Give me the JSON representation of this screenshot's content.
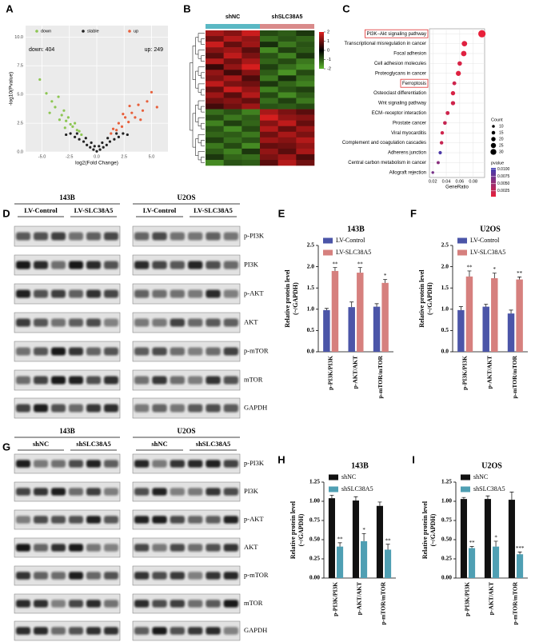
{
  "chart_data": [
    {
      "type": "scatter",
      "panel": "A",
      "xlabel": "log2(Fold Change)",
      "ylabel": "-log10(Pvalue)",
      "annotations": [
        "down: 404",
        "up: 249"
      ],
      "legend": "top",
      "grid": true,
      "xlim": [
        -6.5,
        6.5
      ],
      "ylim": [
        0,
        11
      ],
      "xticks": [
        {
          "value": -5,
          "label": "-5.0"
        },
        {
          "value": -2.5,
          "label": "-2.5"
        },
        {
          "value": 0,
          "label": "0.0"
        },
        {
          "value": 2.5,
          "label": "2.5"
        },
        {
          "value": 5,
          "label": "5.0"
        }
      ],
      "yticks": [
        {
          "value": 0,
          "label": "0.0"
        },
        {
          "value": 2.5,
          "label": "2.5"
        },
        {
          "value": 5,
          "label": "5.0"
        },
        {
          "value": 7.5,
          "label": "7.5"
        },
        {
          "value": 10,
          "label": "10.0"
        }
      ],
      "series": [
        {
          "name": "down",
          "color": "#8dc653",
          "x": [
            -5.2,
            -4.6,
            -4.1,
            -3.8,
            -3.5,
            -3.2,
            -3.0,
            -2.8,
            -2.6,
            -2.4,
            -2.2,
            -2.0,
            -1.8,
            -1.6,
            -1.4,
            -3.4,
            -2.9,
            -4.3
          ],
          "values": [
            6.3,
            5.1,
            4.4,
            3.9,
            4.8,
            3.2,
            3.6,
            2.7,
            3.0,
            2.4,
            2.2,
            2.5,
            1.9,
            1.8,
            1.5,
            2.8,
            2.1,
            3.4
          ]
        },
        {
          "name": "stable",
          "color": "#222222",
          "x": [
            -2.4,
            -2.0,
            -1.6,
            -1.2,
            -0.9,
            -0.6,
            -0.3,
            0,
            0.3,
            0.6,
            0.9,
            1.2,
            1.6,
            2.0,
            2.4,
            -1.0,
            -0.5,
            0.5,
            1.0,
            -1.8,
            1.8,
            -2.8,
            2.8,
            -0.2,
            0.2
          ],
          "values": [
            1.6,
            1.3,
            1.1,
            0.9,
            0.6,
            0.4,
            0.2,
            0.05,
            0.2,
            0.4,
            0.6,
            0.9,
            1.1,
            1.3,
            1.6,
            1.2,
            0.8,
            0.8,
            1.2,
            1.6,
            1.6,
            1.5,
            1.5,
            0.5,
            0.5
          ]
        },
        {
          "name": "up",
          "color": "#e8603c",
          "x": [
            1.3,
            1.5,
            1.8,
            2.0,
            2.3,
            2.6,
            2.9,
            3.2,
            3.5,
            3.8,
            4.2,
            4.6,
            5.0,
            3.0,
            2.4,
            4.0,
            5.5
          ],
          "values": [
            1.6,
            2.0,
            1.9,
            2.5,
            2.2,
            3.0,
            2.6,
            3.4,
            3.0,
            4.1,
            3.6,
            4.4,
            5.2,
            4.0,
            3.3,
            2.8,
            3.9
          ]
        }
      ]
    },
    {
      "type": "heatmap",
      "panel": "B",
      "groups": [
        {
          "name": "shNC",
          "color": "#5ab8c4",
          "columns": 3
        },
        {
          "name": "shSLC38A5",
          "color": "#d98a8a",
          "columns": 3
        }
      ],
      "colors": [
        "#5cb82e",
        "#000000",
        "#e02020"
      ],
      "zlim": [
        -2,
        2
      ],
      "zticks": [
        2,
        1,
        0,
        -1,
        -2
      ],
      "values": [
        [
          1.5,
          1.2,
          1.8,
          -0.8,
          -1.0,
          -0.6
        ],
        [
          1.0,
          1.6,
          1.3,
          -1.2,
          -0.9,
          -1.1
        ],
        [
          1.8,
          0.9,
          1.4,
          -0.5,
          -1.3,
          -0.9
        ],
        [
          1.2,
          1.4,
          0.8,
          -1.5,
          -0.7,
          -1.0
        ],
        [
          0.8,
          1.7,
          1.1,
          -0.9,
          -1.4,
          -0.6
        ],
        [
          1.6,
          1.0,
          1.5,
          -1.1,
          -0.8,
          -1.3
        ],
        [
          0.5,
          1.3,
          1.9,
          -0.7,
          -1.2,
          -1.5
        ],
        [
          1.3,
          0.6,
          1.2,
          -1.0,
          -1.6,
          -0.8
        ],
        [
          1.1,
          1.5,
          0.7,
          -1.3,
          -0.5,
          -1.2
        ],
        [
          1.7,
          1.1,
          1.0,
          -0.6,
          -1.1,
          -1.4
        ],
        [
          0.9,
          1.8,
          1.3,
          -1.4,
          -0.9,
          -0.7
        ],
        [
          1.4,
          0.8,
          1.6,
          -0.8,
          -1.5,
          -1.0
        ],
        [
          1.0,
          1.2,
          0.9,
          -1.2,
          -0.7,
          -1.3
        ],
        [
          0.6,
          1.0,
          1.4,
          -0.9,
          -1.0,
          -0.8
        ],
        [
          -1.2,
          -0.9,
          -1.4,
          1.5,
          1.1,
          0.8
        ],
        [
          -0.8,
          -1.3,
          -1.0,
          1.9,
          1.3,
          1.2
        ],
        [
          -1.4,
          -0.7,
          -1.1,
          1.2,
          1.7,
          0.9
        ],
        [
          -0.9,
          -1.5,
          -0.8,
          1.6,
          0.9,
          1.4
        ],
        [
          -1.1,
          -1.0,
          -1.3,
          1.0,
          1.5,
          1.1
        ],
        [
          -0.7,
          -1.2,
          -0.9,
          1.4,
          1.2,
          1.6
        ],
        [
          -1.3,
          -0.8,
          -1.5,
          0.9,
          1.0,
          1.3
        ],
        [
          -1.0,
          -1.4,
          -0.6,
          1.3,
          0.8,
          1.5
        ],
        [
          -0.6,
          -1.1,
          -1.2,
          1.1,
          1.4,
          0.7
        ],
        [
          -1.5,
          -0.9,
          -1.0,
          0.8,
          1.6,
          1.0
        ]
      ]
    },
    {
      "type": "dot",
      "panel": "C",
      "xlabel": "GeneRatio",
      "size_title": "Count",
      "color_title": "pvalue",
      "boxed": [
        0,
        5
      ],
      "grid": true,
      "categories": [
        "PI3K−Akt signaling pathway",
        "Transcriptional misregulation in cancer",
        "Focal adhesion",
        "Cell adhesion molecules",
        "Proteoglycans in cancer",
        "Ferroptosis",
        "Osteoclast differentiation",
        "Wnt signaling pathway",
        "ECM−receptor interaction",
        "Prostate cancer",
        "Viral myocarditis",
        "Complement and coagulation cascades",
        "Adherens junction",
        "Central carbon metabolism in cancer",
        "Allograft rejection"
      ],
      "values": [
        0.093,
        0.067,
        0.066,
        0.06,
        0.058,
        0.052,
        0.05,
        0.05,
        0.042,
        0.038,
        0.034,
        0.033,
        0.031,
        0.028,
        0.02
      ],
      "sizes": [
        30,
        20,
        20,
        15,
        18,
        12,
        14,
        14,
        12,
        11,
        10,
        10,
        9,
        8,
        6
      ],
      "pvalues": [
        0.0005,
        0.001,
        0.001,
        0.0015,
        0.001,
        0.002,
        0.0015,
        0.002,
        0.002,
        0.0025,
        0.002,
        0.0025,
        0.0095,
        0.006,
        0.007
      ],
      "xlim": [
        0.015,
        0.097
      ],
      "xticks": [
        0.02,
        0.04,
        0.06,
        0.08
      ],
      "size_ticks": [
        10,
        15,
        20,
        25,
        30
      ],
      "colors": [
        "#e8203a",
        "#3b3bb3"
      ],
      "plim": [
        0.0005,
        0.0105
      ],
      "pticks": [
        {
          "value": 0.01,
          "label": "0.0100"
        },
        {
          "value": 0.0075,
          "label": "0.0075"
        },
        {
          "value": 0.005,
          "label": "0.0050"
        },
        {
          "value": 0.0025,
          "label": "0.0025"
        }
      ]
    },
    {
      "type": "bar",
      "panel": "E",
      "title": "143B",
      "ylabel": [
        "Relative protein level",
        "(~/GAPDH)"
      ],
      "categories": [
        "p-PI3K/PI3K",
        "p-AKT/AKT",
        "p-mTOR/mTOR"
      ],
      "series": [
        {
          "name": "LV-Control",
          "color": "#4b55a8",
          "values": [
            0.98,
            1.05,
            1.06
          ],
          "errors": [
            0.04,
            0.12,
            0.07
          ]
        },
        {
          "name": "LV-SLC38A5",
          "color": "#d6807e",
          "values": [
            1.9,
            1.86,
            1.62
          ],
          "errors": [
            0.08,
            0.12,
            0.08
          ],
          "annotations": [
            "**",
            "**",
            "*"
          ]
        }
      ],
      "ylim": [
        0,
        2.5
      ],
      "yticks": [
        {
          "value": 0,
          "label": "0.0"
        },
        {
          "value": 0.5,
          "label": "0.5"
        },
        {
          "value": 1,
          "label": "1.0"
        },
        {
          "value": 1.5,
          "label": "1.5"
        },
        {
          "value": 2,
          "label": "2.0"
        },
        {
          "value": 2.5,
          "label": "2.5"
        }
      ]
    },
    {
      "type": "bar",
      "panel": "F",
      "title": "U2OS",
      "ylabel": [
        "Relative protein level",
        "(~/GAPDH)"
      ],
      "categories": [
        "p-PI3K/PI3K",
        "p-AKT/AKT",
        "p-mTOR/mTOR"
      ],
      "series": [
        {
          "name": "LV-Control",
          "color": "#4b55a8",
          "values": [
            0.98,
            1.06,
            0.9
          ],
          "errors": [
            0.08,
            0.06,
            0.08
          ]
        },
        {
          "name": "LV-SLC38A5",
          "color": "#d6807e",
          "values": [
            1.77,
            1.73,
            1.7
          ],
          "errors": [
            0.13,
            0.12,
            0.06
          ],
          "annotations": [
            "**",
            "*",
            "**"
          ]
        }
      ],
      "ylim": [
        0,
        2.5
      ],
      "yticks": [
        {
          "value": 0,
          "label": "0.0"
        },
        {
          "value": 0.5,
          "label": "0.5"
        },
        {
          "value": 1,
          "label": "1.0"
        },
        {
          "value": 1.5,
          "label": "1.5"
        },
        {
          "value": 2,
          "label": "2.0"
        },
        {
          "value": 2.5,
          "label": "2.5"
        }
      ]
    },
    {
      "type": "bar",
      "panel": "H",
      "title": "143B",
      "ylabel": [
        "Relative protein level",
        "(~/GAPDH)"
      ],
      "categories": [
        "p-PI3K/PI3K",
        "p-AKT/AKT",
        "p-mTOR/mTOR"
      ],
      "series": [
        {
          "name": "shNC",
          "color": "#111111",
          "values": [
            1.04,
            1.01,
            0.94
          ],
          "errors": [
            0.04,
            0.05,
            0.05
          ]
        },
        {
          "name": "shSLC38A5",
          "color": "#4f9fb3",
          "values": [
            0.41,
            0.48,
            0.37
          ],
          "errors": [
            0.05,
            0.1,
            0.07
          ],
          "annotations": [
            "**",
            "*",
            "**"
          ]
        }
      ],
      "ylim": [
        0,
        1.25
      ],
      "yticks": [
        {
          "value": 0,
          "label": "0.00"
        },
        {
          "value": 0.25,
          "label": "0.25"
        },
        {
          "value": 0.5,
          "label": "0.50"
        },
        {
          "value": 0.75,
          "label": "0.75"
        },
        {
          "value": 1,
          "label": "1.00"
        },
        {
          "value": 1.25,
          "label": "1.25"
        }
      ]
    },
    {
      "type": "bar",
      "panel": "I",
      "title": "U2OS",
      "ylabel": [
        "Relative protein level",
        "(~/GAPDH)"
      ],
      "categories": [
        "p-PI3K/PI3K",
        "p-AKT/AKT",
        "p-mTOR/mTOR"
      ],
      "series": [
        {
          "name": "shNC",
          "color": "#111111",
          "values": [
            1.03,
            1.03,
            1.02
          ],
          "errors": [
            0.02,
            0.04,
            0.1
          ]
        },
        {
          "name": "shSLC38A5",
          "color": "#4f9fb3",
          "values": [
            0.39,
            0.41,
            0.31
          ],
          "errors": [
            0.02,
            0.07,
            0.03
          ],
          "annotations": [
            "**",
            "*",
            "***"
          ]
        }
      ],
      "ylim": [
        0,
        1.25
      ],
      "yticks": [
        {
          "value": 0,
          "label": "0.00"
        },
        {
          "value": 0.25,
          "label": "0.25"
        },
        {
          "value": 0.5,
          "label": "0.50"
        },
        {
          "value": 0.75,
          "label": "0.75"
        },
        {
          "value": 1,
          "label": "1.00"
        },
        {
          "value": 1.25,
          "label": "1.25"
        }
      ]
    }
  ],
  "blots": [
    {
      "panel": "D",
      "cell_lines": [
        {
          "name": "143B",
          "groups": [
            "LV-Control",
            "LV-SLC38A5"
          ]
        },
        {
          "name": "U2OS",
          "groups": [
            "LV-Control",
            "LV-SLC38A5"
          ]
        }
      ],
      "proteins": [
        "p-PI3K",
        "PI3K",
        "p-AKT",
        "AKT",
        "p-mTOR",
        "mTOR",
        "GAPDH"
      ]
    },
    {
      "panel": "G",
      "cell_lines": [
        {
          "name": "143B",
          "groups": [
            "shNC",
            "shSLC38A5"
          ]
        },
        {
          "name": "U2OS",
          "groups": [
            "shNC",
            "shSLC38A5"
          ]
        }
      ],
      "proteins": [
        "p-PI3K",
        "PI3K",
        "p-AKT",
        "AKT",
        "p-mTOR",
        "mTOR",
        "GAPDH"
      ]
    }
  ]
}
